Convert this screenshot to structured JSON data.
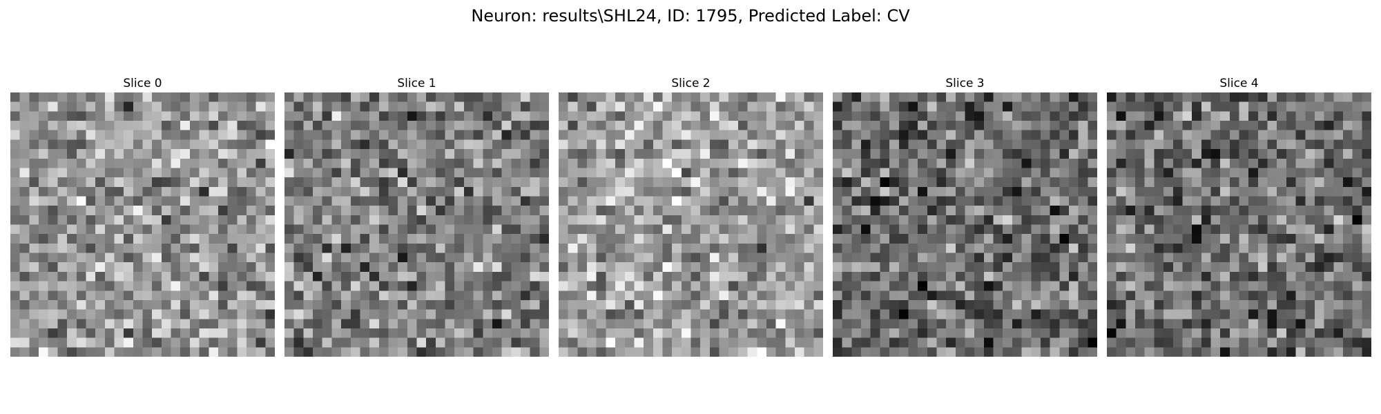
{
  "figure": {
    "title": "Neuron: results\\SHL24, ID: 1795, Predicted Label: CV"
  },
  "chart_data": {
    "type": "heatmap",
    "title": "Neuron: results\\SHL24, ID: 1795, Predicted Label: CV",
    "colormap": "gray",
    "grid_size": [
      28,
      28
    ],
    "axes_visible": false,
    "panels": [
      {
        "title": "Slice 0",
        "brightness": 0.58,
        "seed": 11
      },
      {
        "title": "Slice 1",
        "brightness": 0.5,
        "seed": 23
      },
      {
        "title": "Slice 2",
        "brightness": 0.62,
        "seed": 37
      },
      {
        "title": "Slice 3",
        "brightness": 0.42,
        "seed": 41
      },
      {
        "title": "Slice 4",
        "brightness": 0.44,
        "seed": 53
      }
    ]
  }
}
